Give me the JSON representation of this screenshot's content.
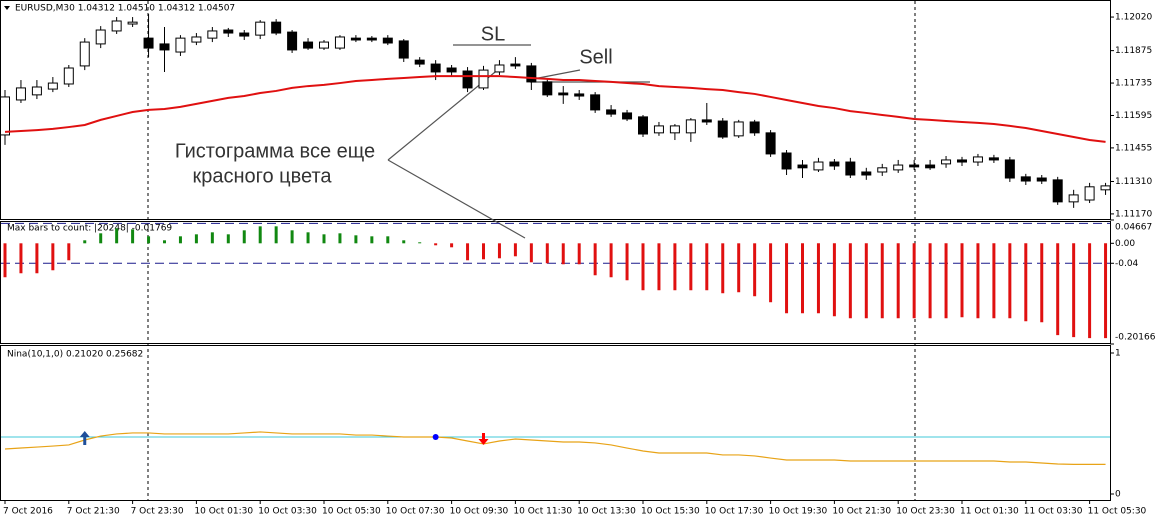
{
  "chart_data": [
    {
      "type": "candlestick",
      "title": "EURUSD,M30  1.04312 1.04510 1.04312 1.04507",
      "categories": [
        "7 Oct 2016",
        null,
        null,
        null,
        "7 Oct 21:30",
        null,
        null,
        null,
        "7 Oct 23:30",
        null,
        null,
        null,
        "10 Oct 01:30",
        null,
        null,
        null,
        "10 Oct 03:30",
        null,
        null,
        null,
        "10 Oct 05:30",
        null,
        null,
        null,
        "10 Oct 07:30",
        null,
        null,
        null,
        "10 Oct 09:30",
        null,
        null,
        null,
        "10 Oct 11:30",
        null,
        null,
        null,
        "10 Oct 13:30",
        null,
        null,
        null,
        "10 Oct 15:30",
        null,
        null,
        null,
        "10 Oct 17:30",
        null,
        null,
        null,
        "10 Oct 19:30",
        null,
        null,
        null,
        "10 Oct 21:30",
        null,
        null,
        null,
        "10 Oct 23:30",
        null,
        null,
        null,
        "11 Oct 01:30",
        null,
        null,
        null,
        "11 Oct 03:30",
        null,
        null,
        null,
        "11 Oct 05:30",
        null
      ],
      "open": [
        1.11511,
        1.11662,
        1.11684,
        1.11709,
        1.11731,
        1.11809,
        1.11904,
        1.1196,
        1.1199,
        1.11929,
        1.11904,
        1.11869,
        1.11912,
        1.11929,
        1.11964,
        1.11951,
        1.11942,
        1.11998,
        1.11955,
        1.11912,
        1.11886,
        1.11886,
        1.11929,
        1.11929,
        1.11929,
        1.11917,
        1.11834,
        1.11817,
        1.118,
        1.11787,
        1.11714,
        1.11783,
        1.11817,
        1.11809,
        1.1174,
        1.11692,
        1.11688,
        1.11684,
        1.11619,
        1.11606,
        1.11589,
        1.1152,
        1.1152,
        1.1152,
        1.11576,
        1.11571,
        1.11507,
        1.11567,
        1.1152,
        1.11433,
        1.11381,
        1.1136,
        1.11394,
        1.11394,
        1.11351,
        1.11351,
        1.1136,
        1.11381,
        1.11381,
        1.11386,
        1.11403,
        1.11394,
        1.11412,
        1.11403,
        1.1133,
        1.11325,
        1.11317,
        1.11222,
        1.1123,
        1.11274
      ],
      "high": [
        1.11705,
        1.11748,
        1.11748,
        1.11761,
        1.11813,
        1.11929,
        1.11981,
        1.1202,
        1.1202,
        1.12033,
        1.11977,
        1.11942,
        1.11951,
        1.11977,
        1.11973,
        1.11964,
        1.12007,
        1.12011,
        1.11964,
        1.11929,
        1.11921,
        1.11942,
        1.11942,
        1.11938,
        1.11942,
        1.11925,
        1.11847,
        1.11834,
        1.11813,
        1.11804,
        1.11809,
        1.11834,
        1.11847,
        1.11822,
        1.11757,
        1.11722,
        1.11705,
        1.11696,
        1.1164,
        1.11619,
        1.11597,
        1.11567,
        1.11558,
        1.11584,
        1.11649,
        1.11584,
        1.11576,
        1.11576,
        1.11532,
        1.11446,
        1.11403,
        1.11412,
        1.11407,
        1.11412,
        1.11369,
        1.11386,
        1.11403,
        1.11403,
        1.11403,
        1.1142,
        1.11416,
        1.11429,
        1.11425,
        1.11416,
        1.11343,
        1.11338,
        1.1133,
        1.11274,
        1.11304,
        1.11304
      ],
      "low": [
        1.11468,
        1.11649,
        1.11666,
        1.11696,
        1.11718,
        1.11791,
        1.11886,
        1.11947,
        1.11977,
        1.11847,
        1.11783,
        1.11852,
        1.11899,
        1.11912,
        1.11934,
        1.11921,
        1.11925,
        1.11942,
        1.11865,
        1.11878,
        1.11878,
        1.11878,
        1.11912,
        1.11912,
        1.11899,
        1.11826,
        1.11804,
        1.11748,
        1.11765,
        1.11696,
        1.11705,
        1.1177,
        1.11796,
        1.11705,
        1.11675,
        1.11645,
        1.11662,
        1.11606,
        1.11589,
        1.11571,
        1.11502,
        1.11507,
        1.11489,
        1.11481,
        1.11554,
        1.11494,
        1.11498,
        1.11507,
        1.11416,
        1.11338,
        1.11325,
        1.11351,
        1.1136,
        1.11325,
        1.11317,
        1.11334,
        1.11347,
        1.1136,
        1.1136,
        1.11369,
        1.11377,
        1.11377,
        1.1139,
        1.11308,
        1.11295,
        1.11299,
        1.11209,
        1.11196,
        1.11217,
        1.11252
      ],
      "close": [
        1.11675,
        1.11714,
        1.11718,
        1.11735,
        1.118,
        1.11912,
        1.11964,
        1.12003,
        1.11998,
        1.11886,
        1.11878,
        1.11929,
        1.11934,
        1.1196,
        1.11951,
        1.11938,
        1.11998,
        1.11951,
        1.11878,
        1.11886,
        1.11912,
        1.11934,
        1.11921,
        1.11921,
        1.11908,
        1.11843,
        1.11817,
        1.11783,
        1.11783,
        1.11714,
        1.11791,
        1.11813,
        1.11809,
        1.1174,
        1.11684,
        1.11684,
        1.11679,
        1.11619,
        1.11601,
        1.1158,
        1.11515,
        1.1155,
        1.1155,
        1.11576,
        1.11567,
        1.11502,
        1.11567,
        1.1152,
        1.11429,
        1.11364,
        1.11369,
        1.11394,
        1.11377,
        1.11338,
        1.11338,
        1.11369,
        1.11381,
        1.11373,
        1.11369,
        1.11403,
        1.11394,
        1.11416,
        1.11403,
        1.11325,
        1.11312,
        1.11312,
        1.11222,
        1.11252,
        1.11287,
        1.11291
      ],
      "up_color": "#ffffff",
      "down_color": "#000000",
      "series": [
        {
          "color": "#e01010",
          "values": [
            1.11524,
            1.11528,
            1.11532,
            1.11537,
            1.11545,
            1.11554,
            1.11576,
            1.11593,
            1.1161,
            1.11619,
            1.11623,
            1.11632,
            1.11645,
            1.11658,
            1.11671,
            1.11679,
            1.11692,
            1.11701,
            1.11714,
            1.11722,
            1.11727,
            1.11735,
            1.11744,
            1.11748,
            1.11753,
            1.11757,
            1.11761,
            1.11765,
            1.11765,
            1.11765,
            1.11765,
            1.11765,
            1.11761,
            1.11757,
            1.11753,
            1.11748,
            1.11748,
            1.11744,
            1.1174,
            1.11735,
            1.11731,
            1.11722,
            1.11718,
            1.11714,
            1.11709,
            1.11705,
            1.11696,
            1.11688,
            1.11675,
            1.11662,
            1.11649,
            1.11636,
            1.11627,
            1.11614,
            1.11606,
            1.11597,
            1.11589,
            1.1158,
            1.11576,
            1.11571,
            1.11567,
            1.11563,
            1.11558,
            1.1155,
            1.11541,
            1.11528,
            1.11515,
            1.11502,
            1.11489,
            1.11481
          ]
        }
      ],
      "ylim": [
        1.11148,
        1.12085
      ],
      "yticks": [
        {
          "value": 1.1202,
          "label": "1.12020"
        },
        1.11875,
        1.11735,
        1.11595,
        1.11455,
        {
          "value": 1.1131,
          "label": "1.11310"
        },
        {
          "value": 1.1117,
          "label": "1.11170"
        }
      ],
      "annotations": [
        "SL",
        "Sell",
        "Гистограмма все еще",
        "красного цвета"
      ]
    },
    {
      "type": "bar",
      "title": "Max bars to count: |20248| -0.01769",
      "values": [
        -0.068,
        -0.06,
        -0.06,
        -0.054,
        -0.034,
        0.006,
        0.02,
        0.03,
        0.028,
        0.014,
        0.006,
        0.014,
        0.018,
        0.022,
        0.018,
        0.026,
        0.034,
        0.034,
        0.026,
        0.022,
        0.018,
        0.02,
        0.016,
        0.014,
        0.014,
        0.006,
        0.002,
        -0.004,
        -0.008,
        -0.034,
        -0.032,
        -0.03,
        -0.026,
        -0.038,
        -0.04,
        -0.042,
        -0.042,
        -0.064,
        -0.068,
        -0.074,
        -0.094,
        -0.094,
        -0.094,
        -0.094,
        -0.094,
        -0.1,
        -0.098,
        -0.106,
        -0.118,
        -0.14,
        -0.14,
        -0.14,
        -0.146,
        -0.15,
        -0.15,
        -0.15,
        -0.15,
        -0.15,
        -0.15,
        -0.15,
        -0.148,
        -0.15,
        -0.15,
        -0.15,
        -0.156,
        -0.158,
        -0.184,
        -0.188,
        -0.19,
        -0.19
      ],
      "positive_color": "#118811",
      "negative_color": "#e01010",
      "levels": [
        0.04,
        -0.04
      ],
      "level_color": "#1a1a8c",
      "ylim": [
        -0.20166,
        0.04667
      ],
      "yticks": [
        0.04667,
        {
          "value": 0,
          "label": "0.00"
        },
        -0.04,
        -0.20166
      ]
    },
    {
      "type": "line",
      "title": "Nina(10,1,0) 0.21020 0.25682",
      "values": [
        0.319,
        0.326,
        0.333,
        0.34,
        0.348,
        0.383,
        0.411,
        0.426,
        0.433,
        0.433,
        0.426,
        0.426,
        0.426,
        0.426,
        0.426,
        0.433,
        0.44,
        0.433,
        0.426,
        0.426,
        0.426,
        0.426,
        0.418,
        0.418,
        0.411,
        0.404,
        0.404,
        0.404,
        0.397,
        0.376,
        0.355,
        0.376,
        0.39,
        0.383,
        0.376,
        0.369,
        0.369,
        0.362,
        0.348,
        0.326,
        0.305,
        0.291,
        0.291,
        0.291,
        0.291,
        0.277,
        0.277,
        0.27,
        0.255,
        0.241,
        0.241,
        0.241,
        0.241,
        0.234,
        0.234,
        0.234,
        0.234,
        0.234,
        0.234,
        0.234,
        0.234,
        0.234,
        0.234,
        0.227,
        0.227,
        0.22,
        0.213,
        0.21,
        0.21,
        0.21
      ],
      "color": "#e8a317",
      "levels": [
        0.404
      ],
      "level_color": "#40c8d8",
      "markers": [
        {
          "kind": "buy",
          "x": 5,
          "value": 0.404,
          "color": "#1f4f9a"
        },
        {
          "kind": "dot",
          "x": 27,
          "value": 0.404,
          "color": "#0000ff"
        },
        {
          "kind": "sell",
          "x": 30,
          "value": 0.404,
          "color": "#ff0000"
        }
      ],
      "ylim": [
        0,
        1
      ],
      "yticks": [
        0,
        1
      ]
    }
  ]
}
